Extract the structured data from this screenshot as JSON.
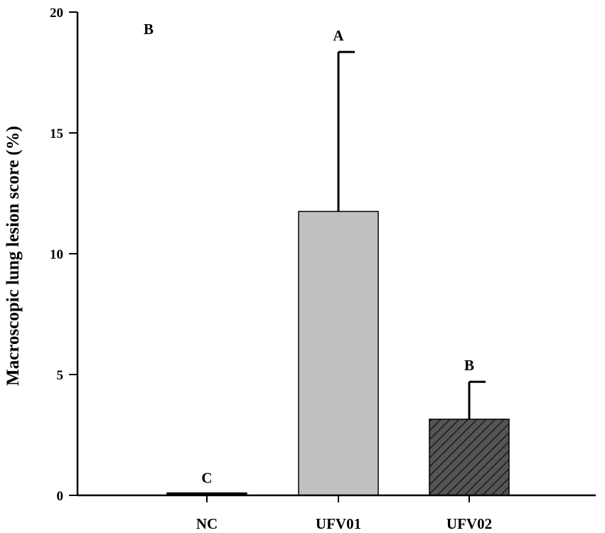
{
  "chart_data": {
    "type": "bar",
    "panel_label": "B",
    "ylabel": "Macroscopic lung lesion score (%)",
    "xlabel": "",
    "ylim": [
      0,
      20
    ],
    "yticks": [
      0,
      5,
      10,
      15,
      20
    ],
    "categories": [
      "NC",
      "UFV01",
      "UFV02"
    ],
    "values": [
      0.1,
      11.75,
      3.15
    ],
    "error": [
      0,
      6.6,
      1.55
    ],
    "significance": [
      "C",
      "A",
      "B"
    ],
    "fills": [
      "solid-black",
      "solid-gray",
      "hatched-dark"
    ],
    "colors": {
      "nc": "#000000",
      "ufv01": "#c0c0c0",
      "ufv02": "#555555",
      "axis": "#000000"
    }
  }
}
